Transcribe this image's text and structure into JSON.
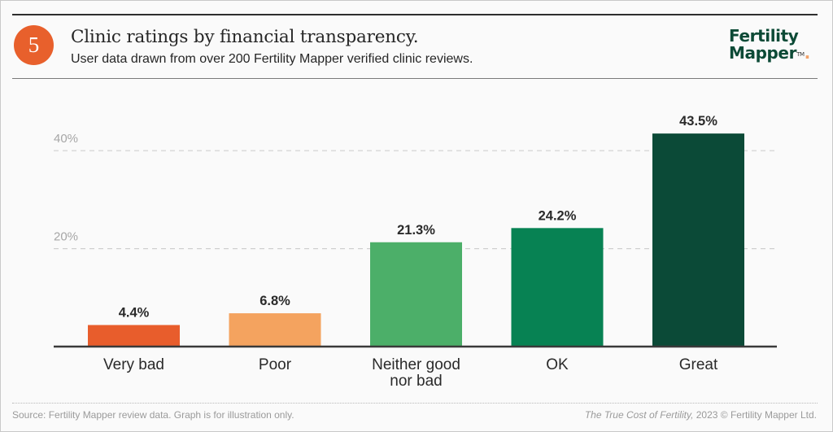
{
  "header": {
    "badge_number": "5",
    "title": "Clinic ratings by financial transparency.",
    "subtitle": "User data drawn from over 200 Fertility Mapper verified clinic reviews.",
    "logo_line1": "Fertility",
    "logo_line2": "Mapper",
    "logo_tm": "TM",
    "badge_color": "#e8602c",
    "brand_color": "#0c4a36"
  },
  "footer": {
    "source": "Source: Fertility Mapper review data.  Graph is for illustration only.",
    "credit_title": "The True Cost of Fertility,",
    "credit_rest": " 2023 © Fertility Mapper Ltd."
  },
  "chart_data": {
    "type": "bar",
    "title": "Clinic ratings by financial transparency.",
    "xlabel": "",
    "ylabel": "",
    "ylim": [
      0,
      45
    ],
    "grid": true,
    "yticks": [
      20,
      40
    ],
    "ytick_labels": [
      "20%",
      "40%"
    ],
    "categories": [
      [
        "Very bad"
      ],
      [
        "Poor"
      ],
      [
        "Neither good",
        "nor bad"
      ],
      [
        "OK"
      ],
      [
        "Great"
      ]
    ],
    "values": [
      4.4,
      6.8,
      21.3,
      24.2,
      43.5
    ],
    "value_labels": [
      "4.4%",
      "6.8%",
      "21.3%",
      "24.2%",
      "43.5%"
    ],
    "colors": [
      "#e85d2c",
      "#f4a35f",
      "#4caf69",
      "#078253",
      "#0b4a37"
    ],
    "legend": "none"
  }
}
